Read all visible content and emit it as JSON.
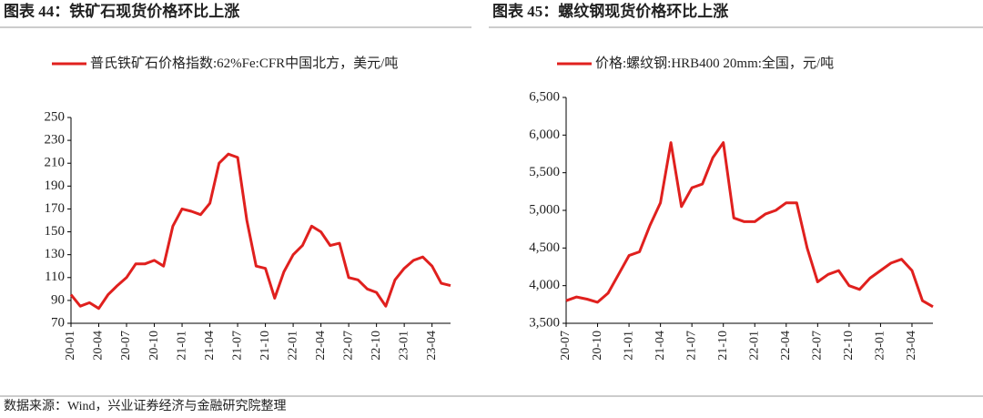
{
  "chart_data": [
    {
      "type": "line",
      "title": "图表 44：铁矿石现货价格环比上涨",
      "categories": [
        "20-01",
        null,
        null,
        "20-04",
        null,
        null,
        "20-07",
        null,
        null,
        "20-10",
        null,
        null,
        "21-01",
        null,
        null,
        "21-04",
        null,
        null,
        "21-07",
        null,
        null,
        "21-10",
        null,
        null,
        "22-01",
        null,
        null,
        "22-04",
        null,
        null,
        "22-07",
        null,
        null,
        "22-10",
        null,
        null,
        "23-01",
        null,
        null,
        "23-04",
        null,
        null
      ],
      "series": [
        {
          "name": "普氏铁矿石价格指数:62%Fe:CFR中国北方，美元/吨",
          "color": "#e0201e",
          "values": [
            95,
            85,
            88,
            83,
            95,
            103,
            110,
            122,
            122,
            125,
            120,
            155,
            170,
            168,
            165,
            175,
            210,
            218,
            215,
            160,
            120,
            118,
            92,
            115,
            130,
            138,
            155,
            150,
            138,
            140,
            110,
            108,
            100,
            97,
            85,
            108,
            118,
            125,
            128,
            120,
            105,
            103
          ]
        }
      ],
      "ylim": [
        70,
        250
      ],
      "yticks": [
        70,
        90,
        110,
        130,
        150,
        170,
        190,
        210,
        230,
        250
      ]
    },
    {
      "type": "line",
      "title": "图表 45：螺纹钢现货价格环比上涨",
      "categories": [
        "20-07",
        null,
        null,
        "20-10",
        null,
        null,
        "21-01",
        null,
        null,
        "21-04",
        null,
        null,
        "21-07",
        null,
        null,
        "21-10",
        null,
        null,
        "22-01",
        null,
        null,
        "22-04",
        null,
        null,
        "22-07",
        null,
        null,
        "22-10",
        null,
        null,
        "23-01",
        null,
        null,
        "23-04",
        null,
        null
      ],
      "series": [
        {
          "name": "价格:螺纹钢:HRB400 20mm:全国，元/吨",
          "color": "#e0201e",
          "values": [
            3800,
            3850,
            3820,
            3780,
            3900,
            4150,
            4400,
            4450,
            4800,
            5100,
            5900,
            5050,
            5300,
            5350,
            5700,
            5900,
            4900,
            4850,
            4850,
            4950,
            5000,
            5100,
            5100,
            4500,
            4050,
            4150,
            4200,
            4000,
            3950,
            4100,
            4200,
            4300,
            4350,
            4200,
            3800,
            3720
          ]
        }
      ],
      "ylim": [
        3500,
        6500
      ],
      "yticks": [
        {
          "value": 3500,
          "label": "3,500"
        },
        {
          "value": 4000,
          "label": "4,000"
        },
        {
          "value": 4500,
          "label": "4,500"
        },
        {
          "value": 5000,
          "label": "5,000"
        },
        {
          "value": 5500,
          "label": "5,500"
        },
        {
          "value": 6000,
          "label": "6,000"
        },
        {
          "value": 6500,
          "label": "6,500"
        }
      ]
    }
  ],
  "source": "数据来源：Wind，兴业证券经济与金融研究院整理"
}
